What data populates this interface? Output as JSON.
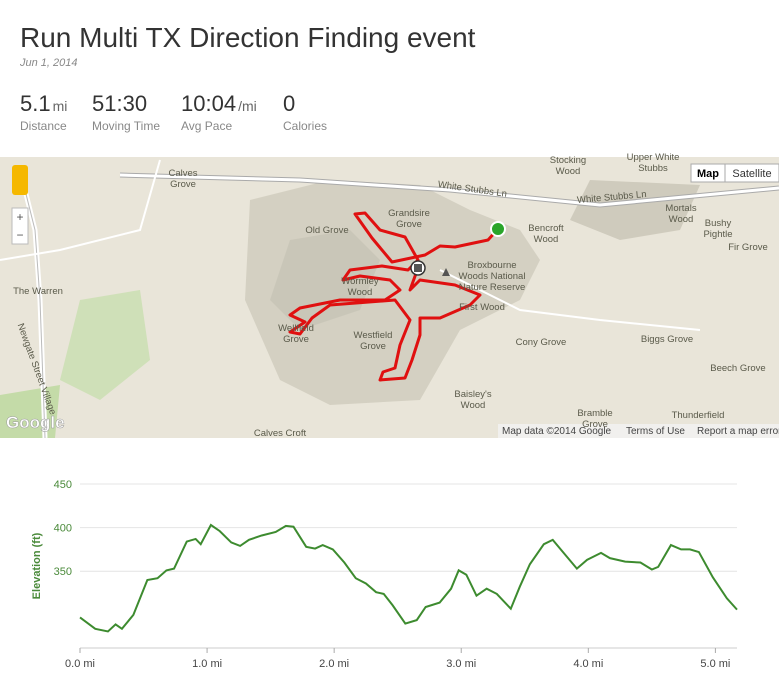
{
  "header": {
    "title": "Run Multi TX Direction Finding event",
    "date": "Jun 1, 2014"
  },
  "stats": [
    {
      "value": "5.1",
      "unit": "mi",
      "label": "Distance"
    },
    {
      "value": "51:30",
      "label": "Moving Time"
    },
    {
      "value": "10:04",
      "unit": "/mi",
      "label": "Avg Pace"
    },
    {
      "value": "0",
      "label": "Calories"
    }
  ],
  "map": {
    "buttons": [
      "Map",
      "Satellite"
    ],
    "labels": [
      {
        "lines": [
          "Calves",
          "Grove"
        ]
      },
      {
        "lines": [
          "Stocking",
          "Wood"
        ]
      },
      {
        "lines": [
          "Upper White",
          "Stubbs"
        ]
      },
      {
        "lines": [
          "White Stubbs Ln"
        ]
      },
      {
        "lines": [
          "White Stubbs Ln"
        ]
      },
      {
        "lines": [
          "Grandsire",
          "Grove"
        ]
      },
      {
        "lines": [
          "Old Grove"
        ]
      },
      {
        "lines": [
          "Bencroft",
          "Wood"
        ]
      },
      {
        "lines": [
          "Mortals",
          "Wood"
        ]
      },
      {
        "lines": [
          "Bushy",
          "Pightle"
        ]
      },
      {
        "lines": [
          "Fir Grove"
        ]
      },
      {
        "lines": [
          "The Warren"
        ]
      },
      {
        "lines": [
          "Wormley",
          "Wood"
        ]
      },
      {
        "lines": [
          "Broxbourne",
          "Woods National",
          "Nature Reserve"
        ]
      },
      {
        "lines": [
          "First Wood"
        ]
      },
      {
        "lines": [
          "Wellfield",
          "Grove"
        ]
      },
      {
        "lines": [
          "Westfield",
          "Grove"
        ]
      },
      {
        "lines": [
          "Cony Grove"
        ]
      },
      {
        "lines": [
          "Biggs Grove"
        ]
      },
      {
        "lines": [
          "Newgate Street Village"
        ]
      },
      {
        "lines": [
          "Beech Grove"
        ]
      },
      {
        "lines": [
          "Baisley's",
          "Wood"
        ]
      },
      {
        "lines": [
          "Bramble",
          "Grove"
        ]
      },
      {
        "lines": [
          "Thunderfield"
        ]
      },
      {
        "lines": [
          "Calves Croft"
        ]
      }
    ],
    "logo": "Google",
    "footer": [
      "Map data ©2014 Google",
      "Terms of Use",
      "Report a map error"
    ]
  },
  "chart_data": {
    "type": "line",
    "y_label": "Elevation (ft)",
    "x": [
      0,
      0.12,
      0.22,
      0.28,
      0.33,
      0.42,
      0.53,
      0.61,
      0.68,
      0.74,
      0.84,
      0.91,
      0.95,
      1.03,
      1.1,
      1.19,
      1.26,
      1.33,
      1.43,
      1.54,
      1.62,
      1.68,
      1.78,
      1.85,
      1.91,
      1.99,
      2.08,
      2.17,
      2.25,
      2.33,
      2.39,
      2.46,
      2.56,
      2.65,
      2.72,
      2.83,
      2.92,
      2.98,
      3.04,
      3.12,
      3.2,
      3.28,
      3.39,
      3.46,
      3.54,
      3.65,
      3.72,
      3.8,
      3.91,
      3.99,
      4.1,
      4.17,
      4.29,
      4.41,
      4.5,
      4.55,
      4.65,
      4.73,
      4.8,
      4.87,
      4.98,
      5.09,
      5.17
    ],
    "series": [
      {
        "name": "Elevation",
        "color": "#3d8b2f",
        "values": [
          297,
          284,
          281,
          289,
          284,
          300,
          340,
          342,
          351,
          353,
          384,
          387,
          381,
          403,
          396,
          383,
          379,
          386,
          391,
          395,
          402,
          401,
          378,
          376,
          380,
          375,
          360,
          342,
          336,
          326,
          324,
          311,
          290,
          294,
          309,
          314,
          330,
          351,
          346,
          322,
          330,
          324,
          307,
          332,
          358,
          381,
          386,
          372,
          353,
          363,
          371,
          365,
          361,
          360,
          352,
          355,
          380,
          375,
          375,
          372,
          343,
          319,
          306
        ]
      }
    ],
    "xlim": [
      0,
      5.17
    ],
    "xticks": [
      {
        "value": 0,
        "label": "0.0 mi"
      },
      {
        "value": 1,
        "label": "1.0 mi"
      },
      {
        "value": 2,
        "label": "2.0 mi"
      },
      {
        "value": 3,
        "label": "3.0 mi"
      },
      {
        "value": 4,
        "label": "4.0 mi"
      },
      {
        "value": 5,
        "label": "5.0 mi"
      }
    ],
    "ylim": [
      262,
      450
    ],
    "yticks": [
      350,
      400,
      450
    ],
    "grid": true
  }
}
